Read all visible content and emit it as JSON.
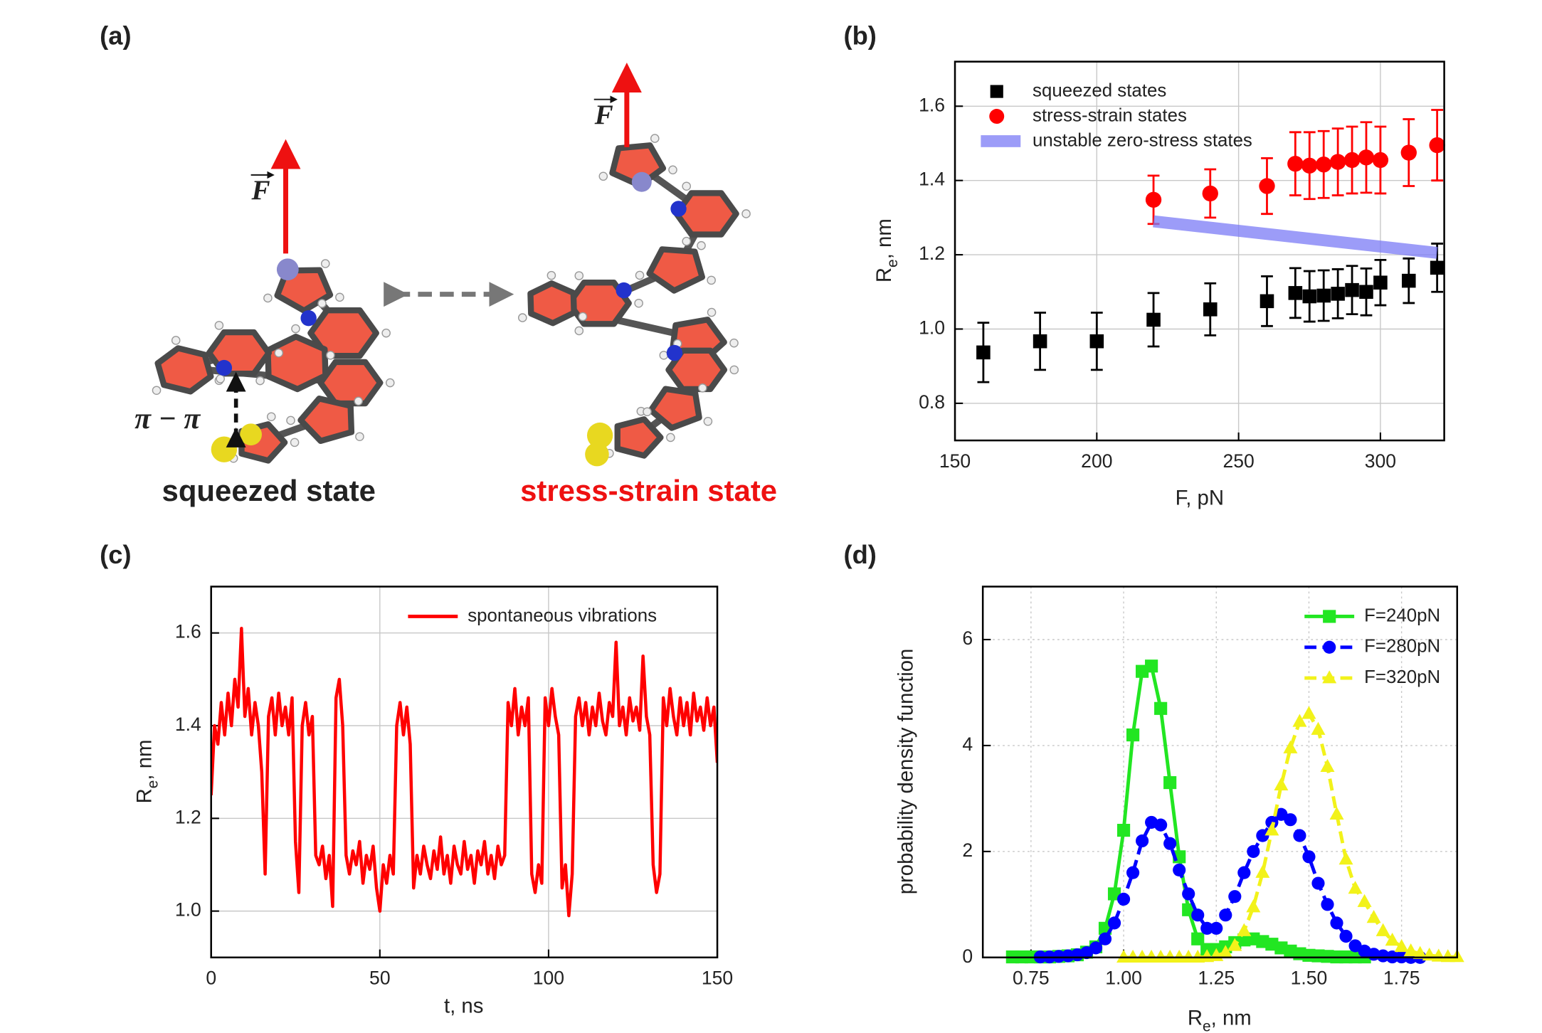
{
  "figure": {
    "panel_labels": [
      "(a)",
      "(b)",
      "(c)",
      "(d)"
    ],
    "left_state": "squeezed state",
    "right_state": "stress-strain state",
    "stacking": "π − π",
    "force": "F"
  },
  "chart_data": [
    {
      "type": "scatter",
      "xlabel": "F, pN",
      "ylabel": [
        "R",
        "e",
        ", nm"
      ],
      "xlim": [
        150,
        322.5
      ],
      "ylim": [
        0.7,
        1.72
      ],
      "xticks": [
        150,
        200,
        250,
        300
      ],
      "yticks": [
        0.8,
        {
          "value": 1.0,
          "label": "1.0"
        },
        1.2,
        1.4,
        1.6
      ],
      "grid": true,
      "legend": "upper left",
      "series": [
        {
          "name": "squeezed states",
          "marker": "square",
          "color": "#000000",
          "x": [
            160,
            180,
            200,
            220,
            240,
            260,
            270,
            275,
            280,
            285,
            290,
            295,
            300,
            310,
            320
          ],
          "values": [
            0.937,
            0.967,
            0.967,
            1.025,
            1.053,
            1.075,
            1.097,
            1.088,
            1.09,
            1.095,
            1.105,
            1.1,
            1.125,
            1.13,
            1.165
          ],
          "errors": [
            0.08,
            0.077,
            0.077,
            0.072,
            0.07,
            0.067,
            0.067,
            0.068,
            0.068,
            0.066,
            0.065,
            0.063,
            0.061,
            0.06,
            0.065
          ]
        },
        {
          "name": "stress-strain states",
          "marker": "circle",
          "color": "#ff0000",
          "x": [
            220,
            240,
            260,
            270,
            275,
            280,
            285,
            290,
            295,
            300,
            310,
            320
          ],
          "values": [
            1.348,
            1.365,
            1.385,
            1.445,
            1.44,
            1.443,
            1.45,
            1.455,
            1.462,
            1.455,
            1.475,
            1.495
          ],
          "errors": [
            0.065,
            0.065,
            0.075,
            0.085,
            0.09,
            0.09,
            0.09,
            0.09,
            0.095,
            0.09,
            0.09,
            0.095
          ]
        },
        {
          "name": "unstable zero-stress states",
          "marker": "band",
          "color": "#7b7bf5",
          "x": [
            220,
            320
          ],
          "values": [
            1.29,
            1.205
          ]
        }
      ]
    },
    {
      "type": "line",
      "xlabel": "t, ns",
      "ylabel": [
        "R",
        "e",
        ", nm"
      ],
      "xlim": [
        0,
        150
      ],
      "ylim": [
        0.9,
        1.7
      ],
      "xticks": [
        0,
        50,
        100,
        150
      ],
      "yticks": [
        {
          "value": 1.0,
          "label": "1.0"
        },
        1.2,
        1.4,
        1.6
      ],
      "grid": true,
      "legend": "upper right",
      "series": [
        {
          "name": "spontaneous vibrations",
          "color": "#ff0000",
          "dash": false,
          "x": [
            0,
            1,
            2,
            3,
            4,
            5,
            6,
            7,
            8,
            9,
            10,
            11,
            12,
            13,
            14,
            15,
            16,
            17,
            18,
            19,
            20,
            21,
            22,
            23,
            24,
            25,
            26,
            27,
            28,
            29,
            30,
            31,
            32,
            33,
            34,
            35,
            36,
            37,
            38,
            39,
            40,
            41,
            42,
            43,
            44,
            45,
            46,
            47,
            48,
            49,
            50,
            51,
            52,
            53,
            54,
            55,
            56,
            57,
            58,
            59,
            60,
            61,
            62,
            63,
            64,
            65,
            66,
            67,
            68,
            69,
            70,
            71,
            72,
            73,
            74,
            75,
            76,
            77,
            78,
            79,
            80,
            81,
            82,
            83,
            84,
            85,
            86,
            87,
            88,
            89,
            90,
            91,
            92,
            93,
            94,
            95,
            96,
            97,
            98,
            99,
            100,
            101,
            102,
            103,
            104,
            105,
            106,
            107,
            108,
            109,
            110,
            111,
            112,
            113,
            114,
            115,
            116,
            117,
            118,
            119,
            120,
            121,
            122,
            123,
            124,
            125,
            126,
            127,
            128,
            129,
            130,
            131,
            132,
            133,
            134,
            135,
            136,
            137,
            138,
            139,
            140,
            141,
            142,
            143,
            144,
            145,
            146,
            147,
            148,
            149,
            150
          ],
          "values": [
            1.25,
            1.4,
            1.36,
            1.45,
            1.38,
            1.47,
            1.4,
            1.5,
            1.44,
            1.61,
            1.42,
            1.48,
            1.38,
            1.45,
            1.4,
            1.3,
            1.08,
            1.42,
            1.46,
            1.38,
            1.47,
            1.4,
            1.44,
            1.38,
            1.46,
            1.15,
            1.04,
            1.4,
            1.45,
            1.38,
            1.42,
            1.12,
            1.1,
            1.14,
            1.07,
            1.12,
            1.01,
            1.46,
            1.5,
            1.4,
            1.12,
            1.08,
            1.13,
            1.1,
            1.15,
            1.06,
            1.12,
            1.09,
            1.14,
            1.05,
            1.0,
            1.1,
            1.06,
            1.12,
            1.08,
            1.4,
            1.45,
            1.38,
            1.44,
            1.36,
            1.05,
            1.12,
            1.08,
            1.14,
            1.1,
            1.07,
            1.13,
            1.09,
            1.16,
            1.08,
            1.12,
            1.06,
            1.14,
            1.1,
            1.08,
            1.15,
            1.09,
            1.12,
            1.06,
            1.13,
            1.1,
            1.15,
            1.08,
            1.12,
            1.07,
            1.14,
            1.1,
            1.12,
            1.45,
            1.4,
            1.48,
            1.38,
            1.44,
            1.4,
            1.46,
            1.08,
            1.04,
            1.1,
            1.06,
            1.46,
            1.4,
            1.48,
            1.42,
            1.38,
            1.05,
            1.1,
            0.99,
            1.08,
            1.42,
            1.46,
            1.4,
            1.45,
            1.38,
            1.44,
            1.4,
            1.47,
            1.41,
            1.38,
            1.45,
            1.42,
            1.58,
            1.4,
            1.44,
            1.38,
            1.46,
            1.41,
            1.44,
            1.39,
            1.55,
            1.42,
            1.38,
            1.1,
            1.04,
            1.08,
            1.46,
            1.4,
            1.48,
            1.42,
            1.38,
            1.46,
            1.4,
            1.45,
            1.38,
            1.47,
            1.41,
            1.44,
            1.39,
            1.46,
            1.4,
            1.44,
            1.32
          ]
        }
      ]
    },
    {
      "type": "line",
      "xlabel": [
        "R",
        "e",
        ", nm"
      ],
      "ylabel": "probability density function",
      "xlim": [
        0.62,
        1.9
      ],
      "ylim": [
        0,
        7
      ],
      "xticks": [
        0.75,
        {
          "value": 1.0,
          "label": "1.00"
        },
        1.25,
        {
          "value": 1.5,
          "label": "1.50"
        },
        1.75
      ],
      "yticks": [
        0,
        2,
        4,
        6
      ],
      "grid": true,
      "legend": "upper right",
      "x": [
        0.7,
        0.725,
        0.75,
        0.775,
        0.8,
        0.825,
        0.85,
        0.875,
        0.9,
        0.925,
        0.95,
        0.975,
        1.0,
        1.025,
        1.05,
        1.075,
        1.1,
        1.125,
        1.15,
        1.175,
        1.2,
        1.225,
        1.25,
        1.275,
        1.3,
        1.325,
        1.35,
        1.375,
        1.4,
        1.425,
        1.45,
        1.475,
        1.5,
        1.525,
        1.55,
        1.575,
        1.6,
        1.625,
        1.65,
        1.675,
        1.7,
        1.725,
        1.75,
        1.775,
        1.8,
        1.825,
        1.85,
        1.875,
        1.9
      ],
      "series": [
        {
          "name": "F=240pN",
          "color": "#22e622",
          "marker": "square",
          "dash": false,
          "values": [
            0.01,
            0.01,
            0.01,
            0.01,
            0.01,
            0.02,
            0.03,
            0.05,
            0.1,
            0.2,
            0.55,
            1.2,
            2.4,
            4.2,
            5.4,
            5.5,
            4.7,
            3.3,
            1.9,
            0.9,
            0.35,
            0.15,
            0.15,
            0.2,
            0.28,
            0.33,
            0.35,
            0.3,
            0.25,
            0.18,
            0.12,
            0.07,
            0.04,
            0.03,
            0.02,
            0.01,
            0.01,
            0.01,
            0.01,
            null,
            null,
            null,
            null,
            null,
            null,
            null,
            null,
            null,
            null
          ]
        },
        {
          "name": "F=280pN",
          "color": "#0000ff",
          "marker": "circle",
          "dash": true,
          "values": [
            null,
            null,
            null,
            0.01,
            0.01,
            0.02,
            0.03,
            0.05,
            0.09,
            0.18,
            0.35,
            0.65,
            1.1,
            1.6,
            2.2,
            2.55,
            2.5,
            2.15,
            1.65,
            1.2,
            0.8,
            0.55,
            0.55,
            0.8,
            1.15,
            1.6,
            2.0,
            2.3,
            2.55,
            2.7,
            2.6,
            2.3,
            1.9,
            1.4,
            1.0,
            0.65,
            0.4,
            0.22,
            0.12,
            0.06,
            0.03,
            0.01,
            0.01,
            0.0,
            0.0,
            null,
            null,
            null,
            null
          ]
        },
        {
          "name": "F=320pN",
          "color": "#f2f21a",
          "marker": "triangle",
          "dash": true,
          "values": [
            null,
            null,
            null,
            null,
            null,
            null,
            null,
            null,
            null,
            null,
            null,
            null,
            0,
            0,
            0,
            0,
            0,
            0,
            0,
            0,
            0,
            0.01,
            0.03,
            0.09,
            0.22,
            0.5,
            0.95,
            1.6,
            2.4,
            3.25,
            3.95,
            4.45,
            4.6,
            4.3,
            3.6,
            2.7,
            1.85,
            1.3,
            1.05,
            0.75,
            0.5,
            0.32,
            0.2,
            0.12,
            0.07,
            0.04,
            0.02,
            0.01,
            0.01
          ]
        }
      ]
    }
  ]
}
